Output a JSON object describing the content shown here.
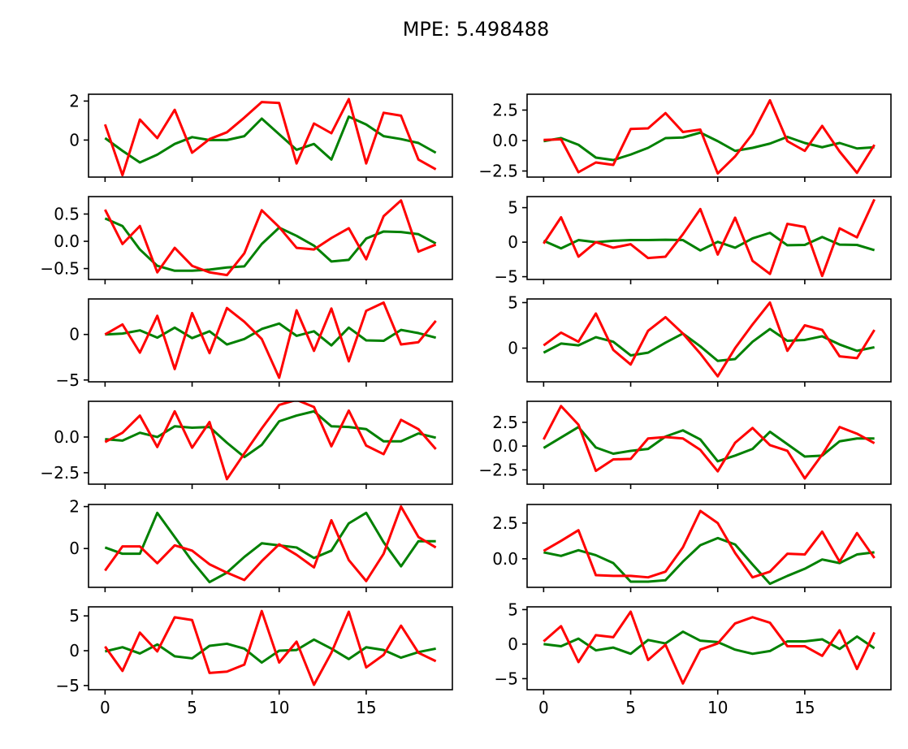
{
  "title": "MPE: 5.498488",
  "chart_data": {
    "type": "line",
    "title": "MPE: 5.498488",
    "layout": "6 rows x 2 columns of line subplots sharing the x axis per column",
    "x": [
      0,
      1,
      2,
      3,
      4,
      5,
      6,
      7,
      8,
      9,
      10,
      11,
      12,
      13,
      14,
      15,
      16,
      17,
      18,
      19
    ],
    "xlim": [
      -0.95,
      19.95
    ],
    "x_ticks": [
      0,
      5,
      10,
      15
    ],
    "x_tick_labels": [
      "0",
      "5",
      "10",
      "15"
    ],
    "series_colors": {
      "green": "#008000",
      "red": "#ff0000"
    },
    "subplots": [
      {
        "ylim": [
          -1.9,
          2.35
        ],
        "y_ticks": [
          0,
          2
        ],
        "y_tick_labels": [
          "0",
          "2"
        ],
        "series": [
          {
            "color": "#008000",
            "values": [
              0.1,
              -0.55,
              -1.15,
              -0.75,
              -0.2,
              0.15,
              0.0,
              0.0,
              0.2,
              1.1,
              0.3,
              -0.5,
              -0.2,
              -1.0,
              1.2,
              0.8,
              0.2,
              0.05,
              -0.15,
              -0.65
            ]
          },
          {
            "color": "#ff0000",
            "values": [
              0.8,
              -1.8,
              1.05,
              0.1,
              1.55,
              -0.65,
              0.05,
              0.4,
              1.15,
              1.95,
              1.9,
              -1.2,
              0.85,
              0.35,
              2.1,
              -1.2,
              1.4,
              1.25,
              -1.0,
              -1.5
            ]
          }
        ]
      },
      {
        "ylim": [
          -3.0,
          3.8
        ],
        "y_ticks": [
          2.5,
          0.0,
          -2.5
        ],
        "y_tick_labels": [
          "2.5",
          "0.0",
          "−2.5"
        ],
        "series": [
          {
            "color": "#008000",
            "values": [
              -0.05,
              0.2,
              -0.35,
              -1.4,
              -1.6,
              -1.15,
              -0.6,
              0.2,
              0.25,
              0.65,
              -0.05,
              -0.85,
              -0.6,
              -0.25,
              0.3,
              -0.2,
              -0.55,
              -0.2,
              -0.65,
              -0.55
            ]
          },
          {
            "color": "#ff0000",
            "values": [
              0.05,
              0.1,
              -2.6,
              -1.8,
              -2.0,
              0.95,
              1.0,
              2.25,
              0.7,
              0.9,
              -2.7,
              -1.3,
              0.55,
              3.3,
              -0.05,
              -0.85,
              1.2,
              -0.9,
              -2.65,
              -0.35
            ]
          }
        ]
      },
      {
        "ylim": [
          -0.7,
          0.82
        ],
        "y_ticks": [
          0.5,
          0.0,
          -0.5
        ],
        "y_tick_labels": [
          "0.5",
          "0.0",
          "−0.5"
        ],
        "series": [
          {
            "color": "#008000",
            "values": [
              0.42,
              0.28,
              -0.15,
              -0.45,
              -0.54,
              -0.54,
              -0.52,
              -0.48,
              -0.46,
              -0.05,
              0.25,
              0.1,
              -0.08,
              -0.37,
              -0.34,
              0.05,
              0.18,
              0.17,
              0.13,
              -0.04
            ]
          },
          {
            "color": "#ff0000",
            "values": [
              0.58,
              -0.05,
              0.28,
              -0.57,
              -0.12,
              -0.45,
              -0.57,
              -0.62,
              -0.22,
              0.57,
              0.26,
              -0.12,
              -0.15,
              0.06,
              0.24,
              -0.33,
              0.46,
              0.75,
              -0.19,
              -0.06
            ]
          }
        ]
      },
      {
        "ylim": [
          -5.4,
          6.6
        ],
        "y_ticks": [
          5,
          0,
          -5
        ],
        "y_tick_labels": [
          "5",
          "0",
          "−5"
        ],
        "series": [
          {
            "color": "#008000",
            "values": [
              0.2,
              -0.9,
              0.3,
              0.0,
              0.2,
              0.3,
              0.3,
              0.35,
              0.3,
              -1.2,
              0.05,
              -0.8,
              0.55,
              1.35,
              -0.45,
              -0.4,
              0.75,
              -0.35,
              -0.4,
              -1.15
            ]
          },
          {
            "color": "#ff0000",
            "values": [
              -0.2,
              3.6,
              -2.1,
              0.0,
              -0.8,
              -0.3,
              -2.3,
              -2.1,
              1.15,
              4.8,
              -1.8,
              3.55,
              -2.7,
              -4.6,
              2.65,
              2.2,
              -4.9,
              2.0,
              0.7,
              6.2
            ]
          }
        ]
      },
      {
        "ylim": [
          -5.2,
          3.9
        ],
        "y_ticks": [
          0,
          -5
        ],
        "y_tick_labels": [
          "0",
          "−5"
        ],
        "series": [
          {
            "color": "#008000",
            "values": [
              0.0,
              0.1,
              0.45,
              -0.35,
              0.75,
              -0.4,
              0.35,
              -1.1,
              -0.5,
              0.6,
              1.2,
              -0.15,
              0.35,
              -1.2,
              0.75,
              -0.65,
              -0.7,
              0.5,
              0.15,
              -0.35
            ]
          },
          {
            "color": "#ff0000",
            "values": [
              0.0,
              1.1,
              -2.0,
              2.05,
              -3.8,
              2.35,
              -2.05,
              2.9,
              1.4,
              -0.5,
              -4.75,
              2.65,
              -1.8,
              2.85,
              -2.95,
              2.6,
              3.5,
              -1.1,
              -0.85,
              1.5
            ]
          }
        ]
      },
      {
        "ylim": [
          -3.7,
          5.4
        ],
        "y_ticks": [
          5,
          0
        ],
        "y_tick_labels": [
          "5",
          "0"
        ],
        "series": [
          {
            "color": "#008000",
            "values": [
              -0.5,
              0.5,
              0.3,
              1.2,
              0.7,
              -0.8,
              -0.5,
              0.6,
              1.6,
              0.2,
              -1.4,
              -1.2,
              0.7,
              2.1,
              0.8,
              0.9,
              1.3,
              0.4,
              -0.3,
              0.1
            ]
          },
          {
            "color": "#ff0000",
            "values": [
              0.3,
              1.7,
              0.7,
              3.8,
              -0.2,
              -1.8,
              1.9,
              3.4,
              1.6,
              -0.6,
              -3.1,
              0.0,
              2.6,
              5.0,
              -0.3,
              2.5,
              2.0,
              -0.9,
              -1.1,
              2.0
            ]
          }
        ]
      },
      {
        "ylim": [
          -3.3,
          2.5
        ],
        "y_ticks": [
          0.0,
          -2.5
        ],
        "y_tick_labels": [
          "0.0",
          "−2.5"
        ],
        "series": [
          {
            "color": "#008000",
            "values": [
              -0.15,
              -0.25,
              0.3,
              0.0,
              0.75,
              0.65,
              0.7,
              -0.4,
              -1.4,
              -0.55,
              1.1,
              1.5,
              1.8,
              0.75,
              0.7,
              0.55,
              -0.3,
              -0.3,
              0.25,
              -0.05
            ]
          },
          {
            "color": "#ff0000",
            "values": [
              -0.35,
              0.3,
              1.5,
              -0.7,
              1.8,
              -0.75,
              1.05,
              -2.95,
              -1.15,
              0.6,
              2.25,
              2.6,
              2.1,
              -0.65,
              1.85,
              -0.6,
              -1.2,
              1.2,
              0.55,
              -0.85
            ]
          }
        ]
      },
      {
        "ylim": [
          -4.0,
          4.7
        ],
        "y_ticks": [
          2.5,
          0.0,
          -2.5
        ],
        "y_tick_labels": [
          "2.5",
          "0.0",
          "−2.5"
        ],
        "series": [
          {
            "color": "#008000",
            "values": [
              -0.2,
              0.9,
              2.0,
              -0.15,
              -0.8,
              -0.5,
              -0.3,
              1.0,
              1.65,
              0.7,
              -1.6,
              -1.0,
              -0.3,
              1.5,
              0.2,
              -1.1,
              -1.0,
              0.5,
              0.8,
              0.8
            ]
          },
          {
            "color": "#ff0000",
            "values": [
              0.7,
              4.2,
              2.25,
              -2.6,
              -1.4,
              -1.35,
              0.8,
              0.95,
              0.8,
              -0.4,
              -2.65,
              0.35,
              1.9,
              0.1,
              -0.5,
              -3.4,
              -0.9,
              2.0,
              1.3,
              0.3
            ]
          }
        ]
      },
      {
        "ylim": [
          -1.85,
          2.1
        ],
        "y_ticks": [
          2,
          0
        ],
        "y_tick_labels": [
          "2",
          "0"
        ],
        "series": [
          {
            "color": "#008000",
            "values": [
              0.05,
              -0.25,
              -0.25,
              1.7,
              0.55,
              -0.6,
              -1.6,
              -1.15,
              -0.4,
              0.25,
              0.15,
              0.05,
              -0.45,
              -0.1,
              1.2,
              1.7,
              0.3,
              -0.85,
              0.35,
              0.35
            ]
          },
          {
            "color": "#ff0000",
            "values": [
              -1.05,
              0.1,
              0.1,
              -0.7,
              0.15,
              -0.1,
              -0.75,
              -1.15,
              -1.5,
              -0.6,
              0.2,
              -0.3,
              -0.9,
              1.35,
              -0.55,
              -1.55,
              -0.25,
              2.0,
              0.55,
              0.05
            ]
          }
        ]
      },
      {
        "ylim": [
          -2.0,
          3.8
        ],
        "y_ticks": [
          2.5,
          0.0
        ],
        "y_tick_labels": [
          "2.5",
          "0.0"
        ],
        "series": [
          {
            "color": "#008000",
            "values": [
              0.45,
              0.2,
              0.6,
              0.25,
              -0.3,
              -1.6,
              -1.6,
              -1.5,
              -0.2,
              0.95,
              1.45,
              1.0,
              -0.4,
              -1.75,
              -1.2,
              -0.7,
              -0.05,
              -0.3,
              0.3,
              0.45
            ]
          },
          {
            "color": "#ff0000",
            "values": [
              0.55,
              1.25,
              2.0,
              -1.15,
              -1.2,
              -1.2,
              -1.3,
              -0.9,
              0.8,
              3.35,
              2.5,
              0.4,
              -1.3,
              -0.9,
              0.35,
              0.3,
              1.9,
              -0.2,
              1.8,
              0.05
            ]
          }
        ]
      },
      {
        "ylim": [
          -5.6,
          6.3
        ],
        "y_ticks": [
          5,
          0,
          -5
        ],
        "y_tick_labels": [
          "5",
          "0",
          "−5"
        ],
        "series": [
          {
            "color": "#008000",
            "values": [
              -0.1,
              0.5,
              -0.4,
              0.9,
              -0.8,
              -1.1,
              0.7,
              1.0,
              0.3,
              -1.7,
              0.0,
              0.1,
              1.6,
              0.3,
              -1.2,
              0.5,
              0.1,
              -1.0,
              -0.2,
              0.3
            ]
          },
          {
            "color": "#ff0000",
            "values": [
              0.6,
              -2.9,
              2.6,
              -0.1,
              4.8,
              4.4,
              -3.2,
              -3.0,
              -2.0,
              5.7,
              -1.7,
              1.3,
              -4.9,
              -0.3,
              5.6,
              -2.4,
              -0.6,
              3.6,
              -0.3,
              -1.5
            ]
          }
        ]
      },
      {
        "ylim": [
          -6.6,
          5.4
        ],
        "y_ticks": [
          5,
          0,
          -5
        ],
        "y_tick_labels": [
          "5",
          "0",
          "−5"
        ],
        "series": [
          {
            "color": "#008000",
            "values": [
              0.0,
              -0.3,
              0.8,
              -0.9,
              -0.5,
              -1.4,
              0.6,
              0.1,
              1.8,
              0.5,
              0.3,
              -0.8,
              -1.4,
              -1.0,
              0.4,
              0.4,
              0.7,
              -0.7,
              1.1,
              -0.6
            ]
          },
          {
            "color": "#ff0000",
            "values": [
              0.4,
              2.6,
              -2.6,
              1.3,
              1.0,
              4.7,
              -2.3,
              -0.1,
              -5.7,
              -0.8,
              0.1,
              3.0,
              3.9,
              3.1,
              -0.3,
              -0.3,
              -1.7,
              2.0,
              -3.6,
              1.7
            ]
          }
        ]
      }
    ]
  }
}
